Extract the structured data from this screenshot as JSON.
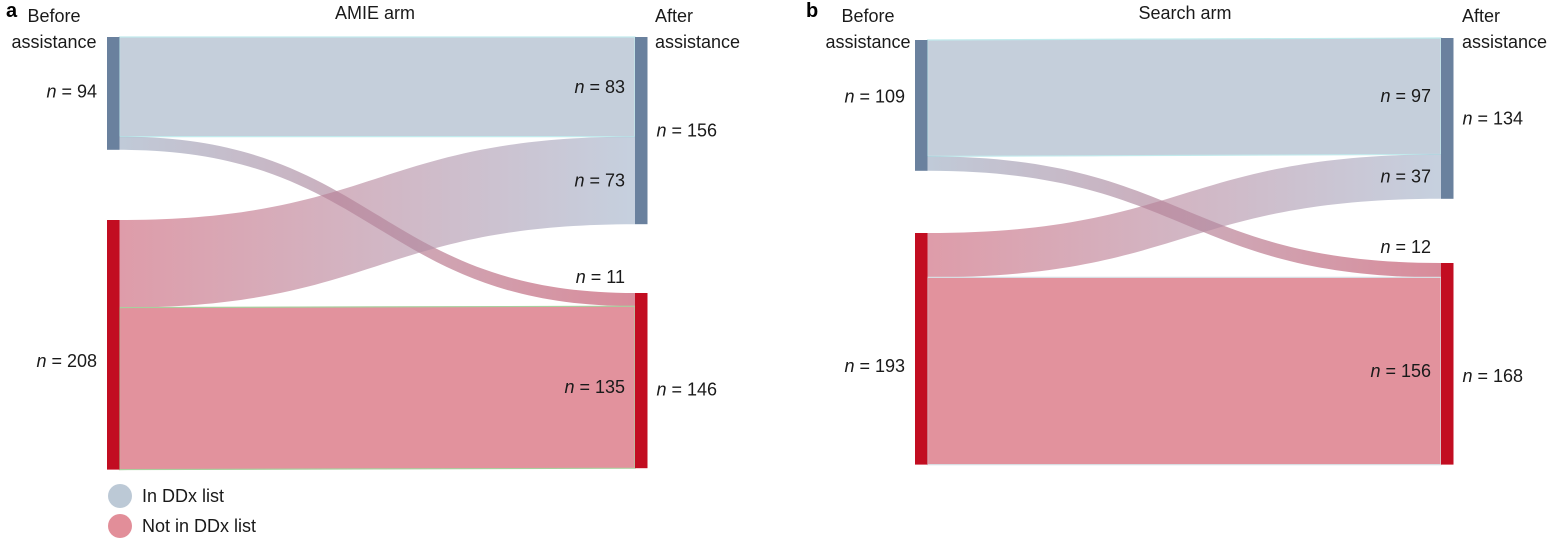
{
  "figure": {
    "background": "#ffffff",
    "text_color": "#1a1a1a",
    "panels": [
      {
        "letter": "a",
        "title": "AMIE arm",
        "left_header_line1": "Before",
        "left_header_line2": "assistance",
        "right_header_line1": "After",
        "right_header_line2": "assistance"
      },
      {
        "letter": "b",
        "title": "Search arm",
        "left_header_line1": "Before",
        "left_header_line2": "assistance",
        "right_header_line1": "After",
        "right_header_line2": "assistance"
      }
    ],
    "legend": {
      "items": [
        {
          "label": "In DDx list",
          "color": "#bcc9d6"
        },
        {
          "label": "Not in DDx list",
          "color": "#e28e99"
        }
      ]
    }
  },
  "chart_data": [
    {
      "type": "sankey",
      "panel": "a",
      "title": "AMIE arm",
      "column_labels": [
        "Before assistance",
        "After assistance"
      ],
      "label_prefix": "n",
      "nodes": [
        {
          "id": "before_in",
          "column": "before",
          "category": "In DDx list",
          "n": 94
        },
        {
          "id": "before_not",
          "column": "before",
          "category": "Not in DDx list",
          "n": 208
        },
        {
          "id": "after_in",
          "column": "after",
          "category": "In DDx list",
          "n": 156
        },
        {
          "id": "after_not",
          "column": "after",
          "category": "Not in DDx list",
          "n": 146
        }
      ],
      "links": [
        {
          "source": "before_in",
          "target": "after_in",
          "n": 83,
          "style": "in"
        },
        {
          "source": "before_in",
          "target": "after_not",
          "n": 11,
          "style": "cross_down"
        },
        {
          "source": "before_not",
          "target": "after_in",
          "n": 73,
          "style": "cross_up"
        },
        {
          "source": "before_not",
          "target": "after_not",
          "n": 135,
          "style": "not"
        }
      ],
      "colors": {
        "node_in": "#6a819e",
        "node_not": "#c20d21",
        "flow_in": "#c5cfdb",
        "flow_not": "#e2929d",
        "stroke_in": "#c2ebed",
        "stroke_not": "#a8cf9e",
        "cross_down": [
          "#96a7be",
          "#bf3f58"
        ],
        "cross_up": [
          "#c85a70",
          "#9fb1c9"
        ],
        "cross_opacity": 0.6
      }
    },
    {
      "type": "sankey",
      "panel": "b",
      "title": "Search arm",
      "column_labels": [
        "Before assistance",
        "After assistance"
      ],
      "label_prefix": "n",
      "nodes": [
        {
          "id": "before_in",
          "column": "before",
          "category": "In DDx list",
          "n": 109
        },
        {
          "id": "before_not",
          "column": "before",
          "category": "Not in DDx list",
          "n": 193
        },
        {
          "id": "after_in",
          "column": "after",
          "category": "In DDx list",
          "n": 134
        },
        {
          "id": "after_not",
          "column": "after",
          "category": "Not in DDx list",
          "n": 168
        }
      ],
      "links": [
        {
          "source": "before_in",
          "target": "after_in",
          "n": 97,
          "style": "in"
        },
        {
          "source": "before_in",
          "target": "after_not",
          "n": 12,
          "style": "cross_down"
        },
        {
          "source": "before_not",
          "target": "after_in",
          "n": 37,
          "style": "cross_up"
        },
        {
          "source": "before_not",
          "target": "after_not",
          "n": 156,
          "style": "not"
        }
      ],
      "colors": {
        "node_in": "#6a819e",
        "node_not": "#c20d21",
        "flow_in": "#c5cfdb",
        "flow_not": "#e2929d",
        "stroke_in": "#c2ebed",
        "stroke_not": "#d8dde2",
        "cross_down": [
          "#96a7be",
          "#bf3f58"
        ],
        "cross_up": [
          "#c85a70",
          "#9fb1c9"
        ],
        "cross_opacity": 0.6
      }
    }
  ]
}
